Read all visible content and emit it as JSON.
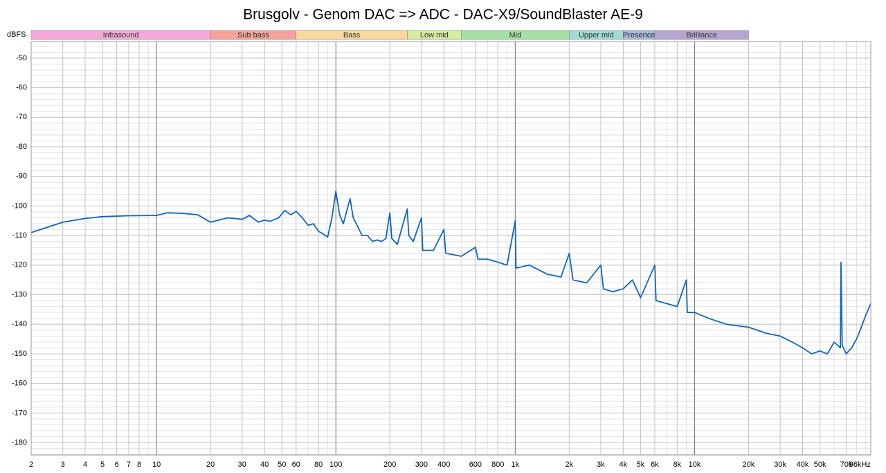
{
  "chart_data": {
    "type": "line",
    "title": "Brusgolv - Genom DAC => ADC - DAC-X9/SoundBlaster AE-9",
    "y_label": "dBFS",
    "xscale": "log",
    "grid": true,
    "xlim": [
      2,
      96000
    ],
    "ylim": [
      -184.2,
      -44.4
    ],
    "xticks": [
      2,
      3,
      4,
      5,
      6,
      7,
      8,
      10,
      20,
      30,
      40,
      50,
      60,
      80,
      100,
      200,
      300,
      400,
      600,
      800,
      {
        "value": 1000,
        "label": "1k"
      },
      {
        "value": 2000,
        "label": "2k"
      },
      {
        "value": 3000,
        "label": "3k"
      },
      {
        "value": 4000,
        "label": "4k"
      },
      {
        "value": 5000,
        "label": "5k"
      },
      {
        "value": 6000,
        "label": "6k"
      },
      {
        "value": 8000,
        "label": "8k"
      },
      {
        "value": 10000,
        "label": "10k"
      },
      {
        "value": 20000,
        "label": "20k"
      },
      {
        "value": 30000,
        "label": "30k"
      },
      {
        "value": 40000,
        "label": "40k"
      },
      {
        "value": 50000,
        "label": "50k"
      },
      {
        "value": 70000,
        "label": "70k"
      },
      {
        "value": 96000,
        "label": "96kHz"
      }
    ],
    "yticks": [
      -50,
      -60,
      -70,
      -80,
      -90,
      -100,
      -110,
      -120,
      -130,
      -140,
      -150,
      -160,
      -170,
      -180
    ],
    "bands": [
      {
        "name": "Infrasound",
        "from": 2,
        "to": 20,
        "color": "#f7a8da"
      },
      {
        "name": "Sub bass",
        "from": 20,
        "to": 60,
        "color": "#f4a29a"
      },
      {
        "name": "Bass",
        "from": 60,
        "to": 250,
        "color": "#f9d99b"
      },
      {
        "name": "Low mid",
        "from": 250,
        "to": 500,
        "color": "#d5eba0"
      },
      {
        "name": "Mid",
        "from": 500,
        "to": 2000,
        "color": "#a5e0a5"
      },
      {
        "name": "Upper mid",
        "from": 2000,
        "to": 4000,
        "color": "#9fdbd3"
      },
      {
        "name": "Presence",
        "from": 4000,
        "to": 6000,
        "color": "#a6b8dc"
      },
      {
        "name": "Brilliance",
        "from": 6000,
        "to": 20000,
        "color": "#b6a6cf"
      }
    ],
    "x": [
      2,
      3,
      4,
      5,
      7,
      10,
      11.5,
      14,
      17,
      20,
      25,
      30,
      33,
      37,
      40,
      43,
      48,
      52,
      56,
      60,
      65,
      70,
      75,
      80,
      85,
      90,
      95,
      100,
      105,
      110,
      120,
      125,
      130,
      140,
      150,
      160,
      170,
      180,
      190,
      200,
      205,
      220,
      250,
      255,
      270,
      300,
      305,
      350,
      400,
      410,
      500,
      600,
      620,
      700,
      800,
      900,
      1000,
      1010,
      1200,
      1500,
      1800,
      2000,
      2100,
      2500,
      3000,
      3100,
      3500,
      4000,
      4500,
      5000,
      6000,
      6100,
      7000,
      8000,
      9000,
      9100,
      10000,
      12000,
      15000,
      20000,
      25000,
      30000,
      35000,
      40000,
      45000,
      50000,
      55000,
      60000,
      65000,
      65500,
      66500,
      70000,
      75000,
      80000,
      85000,
      90000,
      96000
    ],
    "series": [
      {
        "name": "Brusgolv",
        "color": "#0f64c4",
        "values": [
          -109,
          -105.5,
          -104.2,
          -103.6,
          -103.3,
          -103.2,
          -102.3,
          -102.5,
          -103,
          -105.5,
          -104,
          -104.5,
          -103.2,
          -105.5,
          -104.8,
          -105.2,
          -104,
          -101.5,
          -103,
          -101.8,
          -104,
          -106.5,
          -106,
          -108.5,
          -109.5,
          -110.5,
          -104,
          -95,
          -103,
          -106,
          -97.5,
          -104,
          -106,
          -110,
          -110,
          -112,
          -111.5,
          -112,
          -111,
          -102.3,
          -111,
          -113,
          -101,
          -110,
          -112,
          -104,
          -115,
          -115,
          -108,
          -116,
          -117,
          -114,
          -118,
          -118,
          -119,
          -120,
          -105,
          -121,
          -120,
          -123,
          -124,
          -116,
          -125,
          -126,
          -120,
          -128,
          -129,
          -128,
          -125,
          -131,
          -120,
          -132,
          -133,
          -134,
          -125,
          -136,
          -136,
          -138,
          -140,
          -141,
          -143,
          -144,
          -146,
          -148,
          -150,
          -149,
          -150,
          -146,
          -148,
          -119,
          -147,
          -150,
          -148,
          -145,
          -141,
          -137,
          -133
        ]
      }
    ]
  }
}
